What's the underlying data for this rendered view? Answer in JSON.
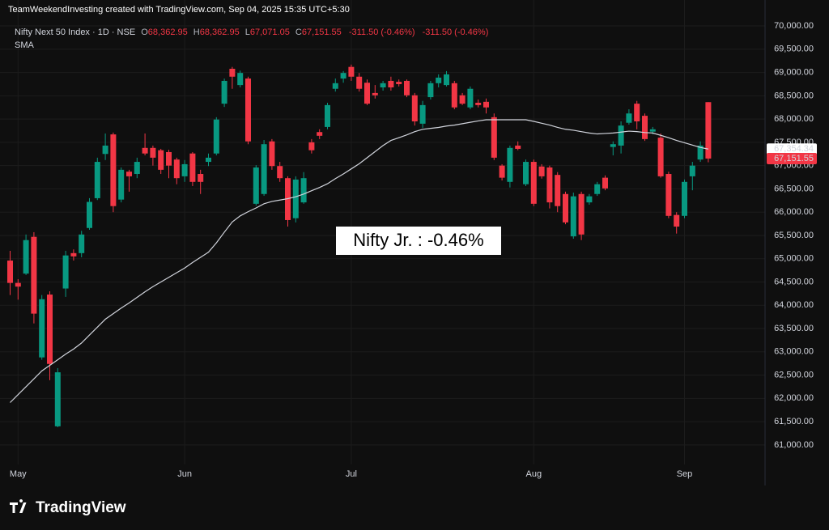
{
  "header": "TeamWeekendInvesting created with TradingView.com, Sep 04, 2025 15:35 UTC+5:30",
  "legend": {
    "symbol": "Nifty Next 50 Index · 1D · NSE",
    "items": [
      {
        "key": "O",
        "value": "68,362.95"
      },
      {
        "key": "H",
        "value": "68,362.95"
      },
      {
        "key": "L",
        "value": "67,071.05"
      },
      {
        "key": "C",
        "value": "67,151.55"
      }
    ],
    "change": "-311.50 (-0.46%)",
    "change_repeat": "-311.50 (-0.46%)"
  },
  "logo": "TradingView",
  "chart_data": {
    "type": "candlestick",
    "annotation": "Nifty Jr. : -0.46%",
    "up_color": "#089981",
    "down_color": "#f23645",
    "grid": true,
    "categories": [
      null,
      "May",
      null,
      null,
      null,
      null,
      null,
      null,
      null,
      null,
      null,
      null,
      null,
      null,
      null,
      null,
      null,
      null,
      null,
      null,
      null,
      null,
      "Jun",
      null,
      null,
      null,
      null,
      null,
      null,
      null,
      null,
      null,
      null,
      null,
      null,
      null,
      null,
      null,
      null,
      null,
      null,
      null,
      null,
      "Jul",
      null,
      null,
      null,
      null,
      null,
      null,
      null,
      null,
      null,
      null,
      null,
      null,
      null,
      null,
      null,
      null,
      null,
      null,
      null,
      null,
      null,
      null,
      "Aug",
      null,
      null,
      null,
      null,
      null,
      null,
      null,
      null,
      null,
      null,
      null,
      null,
      null,
      null,
      null,
      null,
      null,
      null,
      "Sep",
      null,
      null,
      null
    ],
    "open": [
      64960,
      64480,
      64680,
      65470,
      62880,
      64230,
      61400,
      64360,
      65120,
      65120,
      65660,
      66300,
      67250,
      67670,
      66270,
      66870,
      66820,
      67380,
      67380,
      67330,
      67290,
      67130,
      66770,
      67260,
      66820,
      67080,
      67260,
      68330,
      69080,
      68730,
      68870,
      66180,
      66390,
      67520,
      66990,
      66730,
      65870,
      66210,
      67500,
      67720,
      67830,
      68650,
      68870,
      69120,
      68910,
      68780,
      68560,
      68680,
      68820,
      68800,
      68820,
      68510,
      67900,
      68470,
      68770,
      68730,
      68770,
      68510,
      68250,
      68350,
      68370,
      68040,
      67000,
      66650,
      67430,
      66600,
      67080,
      66980,
      66960,
      66800,
      66390,
      65480,
      66390,
      66210,
      66390,
      66740,
      67400,
      67430,
      67920,
      68330,
      68070,
      67730,
      67600,
      66820,
      65940,
      65920,
      66770,
      67130,
      68362.95
    ],
    "high": [
      65170,
      64560,
      65520,
      65570,
      64220,
      64300,
      62650,
      65170,
      65200,
      65600,
      66300,
      67170,
      67690,
      67710,
      66960,
      66910,
      67170,
      67690,
      67430,
      67360,
      67340,
      67170,
      67120,
      67290,
      66910,
      67260,
      68040,
      68870,
      69120,
      69040,
      68910,
      67010,
      67550,
      67570,
      67080,
      66770,
      66770,
      66860,
      67570,
      67780,
      68350,
      68870,
      69030,
      69170,
      68990,
      68850,
      68730,
      68820,
      68910,
      68850,
      68850,
      68560,
      68390,
      68820,
      68960,
      69030,
      68820,
      68560,
      68700,
      68420,
      68440,
      68120,
      67030,
      67430,
      67520,
      67130,
      67130,
      67030,
      67000,
      66860,
      66440,
      66420,
      66440,
      66390,
      66650,
      66790,
      67520,
      67950,
      68210,
      68390,
      68120,
      67830,
      67690,
      66870,
      66000,
      66700,
      67080,
      67520,
      68362.95
    ],
    "low": [
      64220,
      64120,
      64650,
      63610,
      62830,
      62390,
      61380,
      64180,
      64960,
      65030,
      65620,
      66260,
      67120,
      66000,
      66210,
      66440,
      66730,
      67220,
      67000,
      66820,
      66730,
      66600,
      66650,
      66560,
      66390,
      66990,
      67220,
      68260,
      68650,
      68680,
      67460,
      66140,
      66350,
      66910,
      66650,
      65690,
      65780,
      66180,
      67260,
      67570,
      67780,
      68590,
      68780,
      68820,
      68590,
      68300,
      68440,
      68610,
      68610,
      68700,
      68470,
      67860,
      67810,
      68420,
      68680,
      68700,
      68210,
      68300,
      68210,
      68250,
      68120,
      67120,
      66680,
      66530,
      67330,
      66560,
      66130,
      66720,
      66080,
      66000,
      65740,
      65430,
      65400,
      66160,
      66350,
      66470,
      67220,
      67260,
      67880,
      67780,
      67530,
      67670,
      66740,
      65870,
      65540,
      65870,
      66470,
      67080,
      67071.05
    ],
    "close": [
      64480,
      64400,
      65400,
      63820,
      64130,
      62740,
      62560,
      65070,
      65050,
      65520,
      66220,
      67080,
      67430,
      66130,
      66910,
      66770,
      67080,
      67260,
      67170,
      66910,
      67000,
      66730,
      67030,
      66650,
      66650,
      67170,
      67990,
      68820,
      68910,
      68990,
      67520,
      66960,
      67460,
      66990,
      66730,
      65830,
      66700,
      66730,
      67330,
      67640,
      68300,
      68770,
      68990,
      68910,
      68650,
      68330,
      68510,
      68770,
      68680,
      68750,
      68510,
      67950,
      68300,
      68770,
      68890,
      68960,
      68250,
      68330,
      68650,
      68300,
      68250,
      67170,
      66740,
      67380,
      67360,
      67080,
      66180,
      66770,
      66210,
      66130,
      65780,
      66340,
      65520,
      66340,
      66600,
      66510,
      67460,
      67860,
      68120,
      67950,
      67570,
      67780,
      66770,
      65920,
      65690,
      66650,
      67000,
      67430,
      67151.55
    ],
    "series": [
      {
        "name": "SMA",
        "color": "#d1d4dc",
        "values": [
          61910,
          62080,
          62250,
          62420,
          62590,
          62710,
          62830,
          62950,
          63060,
          63190,
          63360,
          63530,
          63700,
          63820,
          63940,
          64050,
          64170,
          64290,
          64400,
          64500,
          64600,
          64700,
          64800,
          64920,
          65030,
          65140,
          65340,
          65570,
          65790,
          65920,
          66010,
          66090,
          66180,
          66230,
          66260,
          66290,
          66330,
          66390,
          66460,
          66530,
          66610,
          66720,
          66820,
          66930,
          67040,
          67170,
          67300,
          67430,
          67540,
          67600,
          67660,
          67730,
          67780,
          67800,
          67820,
          67850,
          67870,
          67900,
          67930,
          67960,
          67985,
          67985,
          67985,
          67985,
          67985,
          67985,
          67950,
          67910,
          67870,
          67820,
          67780,
          67760,
          67730,
          67700,
          67680,
          67690,
          67700,
          67720,
          67740,
          67730,
          67710,
          67700,
          67650,
          67600,
          67540,
          67490,
          67440,
          67390,
          67354.34
        ]
      }
    ],
    "price_labels": [
      {
        "value": 67354.34,
        "label": "67,354.34"
      },
      {
        "value": 67151.55,
        "label": "67,151.55"
      }
    ],
    "ylim": [
      60650,
      70140
    ],
    "yticks": [
      {
        "value": 61000,
        "label": "61,000.00"
      },
      {
        "value": 61500,
        "label": "61,500.00"
      },
      {
        "value": 62000,
        "label": "62,000.00"
      },
      {
        "value": 62500,
        "label": "62,500.00"
      },
      {
        "value": 63000,
        "label": "63,000.00"
      },
      {
        "value": 63500,
        "label": "63,500.00"
      },
      {
        "value": 64000,
        "label": "64,000.00"
      },
      {
        "value": 64500,
        "label": "64,500.00"
      },
      {
        "value": 65000,
        "label": "65,000.00"
      },
      {
        "value": 65500,
        "label": "65,500.00"
      },
      {
        "value": 66000,
        "label": "66,000.00"
      },
      {
        "value": 66500,
        "label": "66,500.00"
      },
      {
        "value": 67000,
        "label": "67,000.00"
      },
      {
        "value": 67500,
        "label": "67,500.00"
      },
      {
        "value": 68000,
        "label": "68,000.00"
      },
      {
        "value": 68500,
        "label": "68,500.00"
      },
      {
        "value": 69000,
        "label": "69,000.00"
      },
      {
        "value": 69500,
        "label": "69,500.00"
      },
      {
        "value": 70000,
        "label": "70,000.00"
      }
    ]
  }
}
